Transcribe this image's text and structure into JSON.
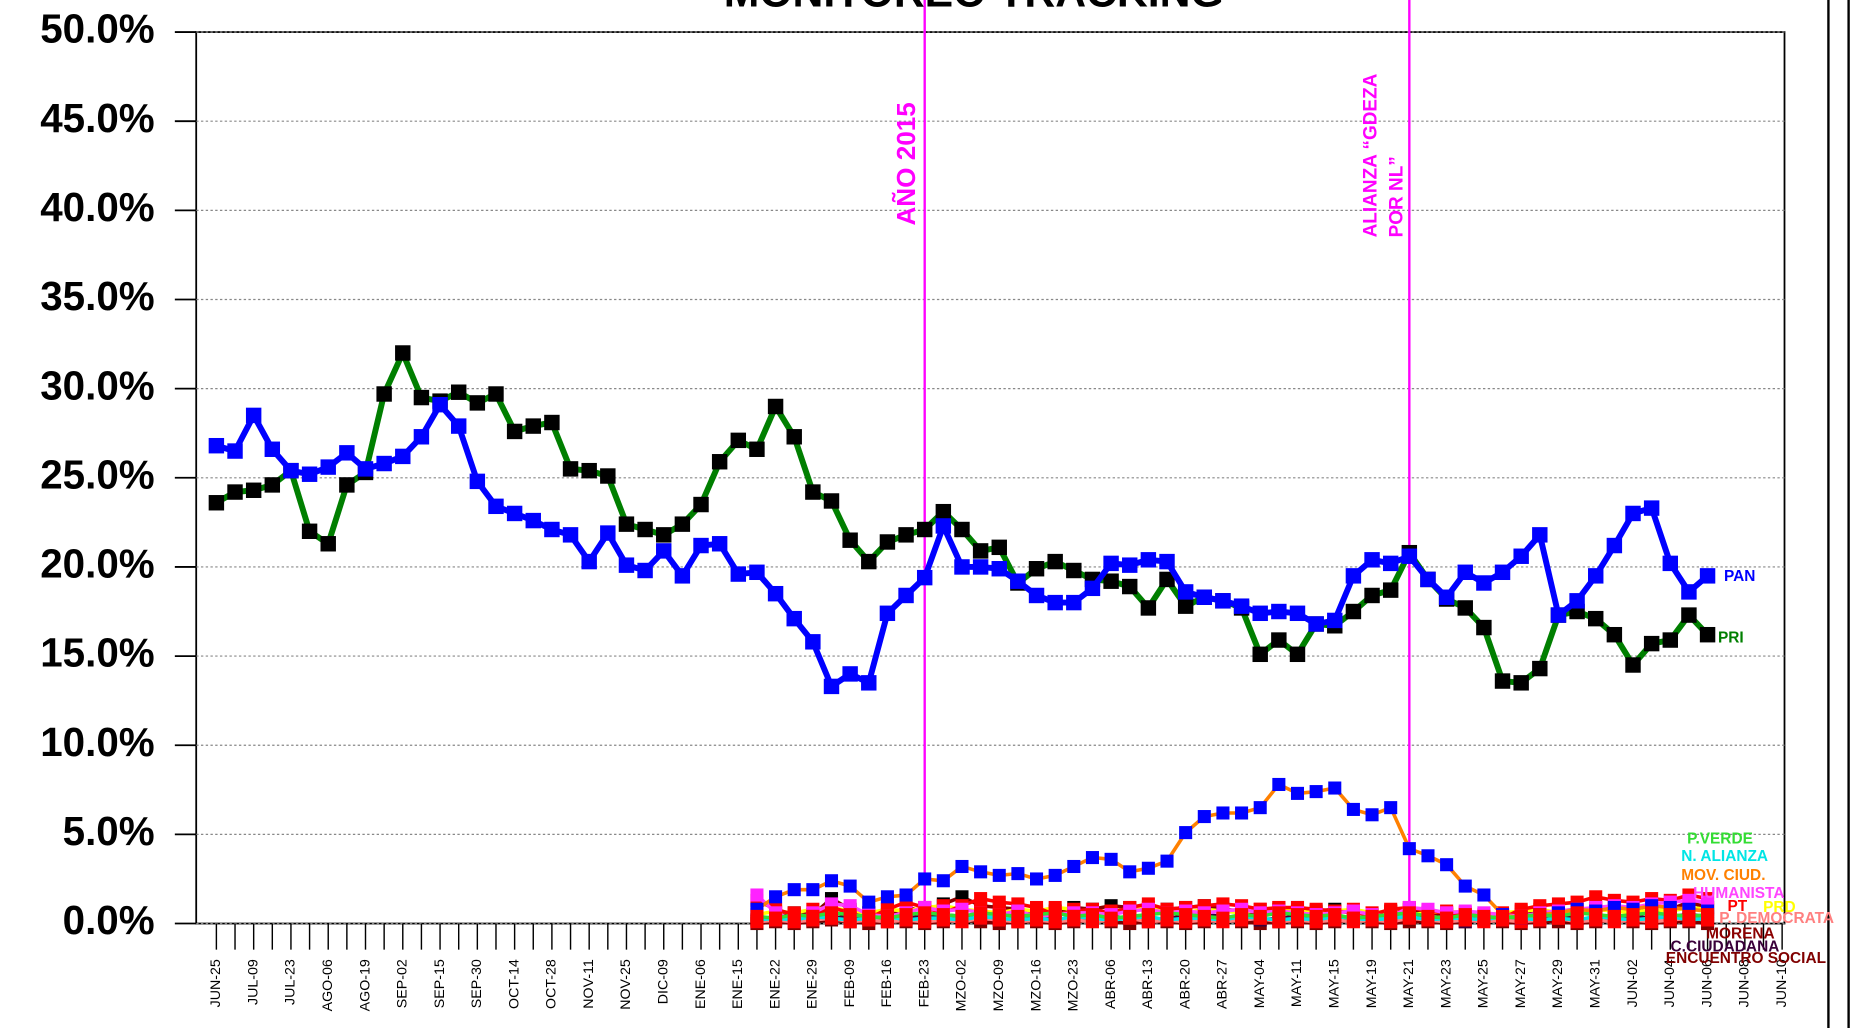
{
  "chart_data": {
    "type": "line",
    "title": "MONITOREO TRACKING",
    "categories": [
      "JUN-25",
      null,
      "JUL-09",
      null,
      "JUL-23",
      null,
      "AGO-06",
      null,
      "AGO-19",
      null,
      "SEP-02",
      null,
      "SEP-15",
      null,
      "SEP-30",
      null,
      "OCT-14",
      null,
      "OCT-28",
      null,
      "NOV-11",
      null,
      "NOV-25",
      null,
      "DIC-09",
      null,
      "ENE-06",
      null,
      "ENE-15",
      null,
      "ENE-22",
      null,
      "ENE-29",
      null,
      "FEB-09",
      null,
      "FEB-16",
      null,
      "FEB-23",
      null,
      "MZO-02",
      null,
      "MZO-09",
      null,
      "MZO-16",
      null,
      "MZO-23",
      null,
      "ABR-06",
      null,
      "ABR-13",
      null,
      "ABR-20",
      null,
      "ABR-27",
      null,
      "MAY-04",
      null,
      "MAY-11",
      null,
      "MAY-15",
      null,
      "MAY-19",
      null,
      "MAY-21",
      null,
      "MAY-23",
      null,
      "MAY-25",
      null,
      "MAY-27",
      null,
      "MAY-29",
      null,
      "MAY-31",
      null,
      "JUN-02",
      null,
      "JUN-04",
      null,
      "JUN-06",
      null,
      "JUN-08",
      null,
      "JUN-10"
    ],
    "ylim": [
      0,
      50
    ],
    "yticks": [
      {
        "value": 0,
        "label": "0.0%"
      },
      {
        "value": 5,
        "label": "5.0%"
      },
      {
        "value": 10,
        "label": "10.0%"
      },
      {
        "value": 15,
        "label": "15.0%"
      },
      {
        "value": 20,
        "label": "20.0%"
      },
      {
        "value": 25,
        "label": "25.0%"
      },
      {
        "value": 30,
        "label": "30.0%"
      },
      {
        "value": 35,
        "label": "35.0%"
      },
      {
        "value": 40,
        "label": "40.0%"
      },
      {
        "value": 45,
        "label": "45.0%"
      },
      {
        "value": 50,
        "label": "50.0%"
      }
    ],
    "grid": true,
    "annotations": [
      {
        "lines": [
          "AÑO 2015"
        ],
        "at": "FEB-23"
      },
      {
        "lines": [
          "ALIANZA “GDEZA",
          "POR NL”"
        ],
        "at": "MAY-21"
      }
    ],
    "series": [
      {
        "name": "PAN",
        "color": "#0000ff",
        "marker_color": "#0000ff",
        "values": [
          26.8,
          26.5,
          28.5,
          26.6,
          25.4,
          25.2,
          25.6,
          26.4,
          25.5,
          25.8,
          26.2,
          27.3,
          29.1,
          27.9,
          24.8,
          23.4,
          23.0,
          22.6,
          22.1,
          21.8,
          20.3,
          21.9,
          20.1,
          19.8,
          20.9,
          19.5,
          21.2,
          21.3,
          19.6,
          19.7,
          18.5,
          17.1,
          15.8,
          13.3,
          14.0,
          13.5,
          17.4,
          18.4,
          19.4,
          22.3,
          20.0,
          20.0,
          19.9,
          19.2,
          18.4,
          18.0,
          18.0,
          18.8,
          20.2,
          20.1,
          20.4,
          20.3,
          18.6,
          18.3,
          18.1,
          17.8,
          17.4,
          17.5,
          17.4,
          16.8,
          17.0,
          19.5,
          20.4,
          20.2,
          20.6,
          19.3,
          18.3,
          19.7,
          19.1,
          19.7,
          20.6,
          21.8,
          17.3,
          18.1,
          19.5,
          21.2,
          23.0,
          23.3,
          20.2,
          18.6,
          19.5,
          null,
          null,
          null,
          null
        ]
      },
      {
        "name": "PRI",
        "color": "#007f00",
        "marker_color": "#000000",
        "values": [
          23.6,
          24.2,
          24.3,
          24.6,
          25.4,
          22.0,
          21.3,
          24.6,
          25.3,
          29.7,
          32.0,
          29.5,
          29.3,
          29.8,
          29.2,
          29.7,
          27.6,
          27.9,
          28.1,
          25.5,
          25.4,
          25.1,
          22.4,
          22.1,
          21.8,
          22.4,
          23.5,
          25.9,
          27.1,
          26.6,
          29.0,
          27.3,
          24.2,
          23.7,
          21.5,
          20.3,
          21.4,
          21.8,
          22.1,
          23.1,
          22.1,
          20.9,
          21.1,
          19.1,
          19.9,
          20.3,
          19.8,
          19.3,
          19.2,
          18.9,
          17.7,
          19.3,
          17.8,
          18.3,
          18.1,
          17.7,
          15.1,
          15.9,
          15.1,
          16.8,
          16.7,
          17.5,
          18.4,
          18.7,
          20.8,
          19.3,
          18.2,
          17.7,
          16.6,
          13.6,
          13.5,
          14.3,
          17.3,
          17.5,
          17.1,
          16.2,
          14.5,
          15.7,
          15.9,
          17.3,
          16.2,
          null,
          null,
          null,
          null
        ]
      },
      {
        "name": "P.VERDE",
        "color": "#33dd33",
        "marker_color": "#ff0000",
        "values": [
          null,
          null,
          null,
          null,
          null,
          null,
          null,
          null,
          null,
          null,
          null,
          null,
          null,
          null,
          null,
          null,
          null,
          null,
          null,
          null,
          null,
          null,
          null,
          null,
          null,
          null,
          null,
          null,
          null,
          0.4,
          0.3,
          0.5,
          0.4,
          0.6,
          0.5,
          0.4,
          0.3,
          0.5,
          0.6,
          0.5,
          0.4,
          0.6,
          0.5,
          0.4,
          0.5,
          0.6,
          0.4,
          0.5,
          0.3,
          0.4,
          0.5,
          0.6,
          0.5,
          0.4,
          0.3,
          0.5,
          0.4,
          0.6,
          0.5,
          0.4,
          0.5,
          0.3,
          0.4,
          0.5,
          0.6,
          0.4,
          0.3,
          0.5,
          0.4,
          0.3,
          0.4,
          0.5,
          0.4,
          0.6,
          0.5,
          0.4,
          0.5,
          0.6,
          0.5,
          0.4,
          0.5,
          null,
          null,
          null,
          null
        ]
      },
      {
        "name": "N. ALIANZA",
        "color": "#00e5e5",
        "marker_color": "#ff0000",
        "values": [
          null,
          null,
          null,
          null,
          null,
          null,
          null,
          null,
          null,
          null,
          null,
          null,
          null,
          null,
          null,
          null,
          null,
          null,
          null,
          null,
          null,
          null,
          null,
          null,
          null,
          null,
          null,
          null,
          null,
          0.2,
          0.3,
          0.2,
          0.4,
          0.3,
          0.2,
          0.3,
          0.4,
          0.2,
          0.3,
          0.3,
          0.2,
          0.4,
          0.3,
          0.2,
          0.3,
          0.2,
          0.4,
          0.3,
          0.2,
          0.3,
          0.4,
          0.2,
          0.3,
          0.3,
          0.2,
          0.4,
          0.3,
          0.2,
          0.3,
          0.2,
          0.4,
          0.3,
          0.2,
          0.3,
          0.4,
          0.2,
          0.3,
          0.3,
          0.2,
          0.4,
          0.3,
          0.2,
          0.3,
          0.2,
          0.4,
          0.3,
          0.2,
          0.3,
          0.4,
          0.2,
          0.3,
          null,
          null,
          null,
          null
        ]
      },
      {
        "name": "MOV. CIUD.",
        "color": "#ff8000",
        "marker_color": "#0000ff",
        "values": [
          null,
          null,
          null,
          null,
          null,
          null,
          null,
          null,
          null,
          null,
          null,
          null,
          null,
          null,
          null,
          null,
          null,
          null,
          null,
          null,
          null,
          null,
          null,
          null,
          null,
          null,
          null,
          null,
          null,
          0.8,
          1.5,
          1.9,
          1.9,
          2.4,
          2.1,
          1.2,
          1.5,
          1.6,
          2.5,
          2.4,
          3.2,
          2.9,
          2.7,
          2.8,
          2.5,
          2.7,
          3.2,
          3.7,
          3.6,
          2.9,
          3.1,
          3.5,
          5.1,
          6.0,
          6.2,
          6.2,
          6.5,
          7.8,
          7.3,
          7.4,
          7.6,
          6.4,
          6.1,
          6.5,
          4.2,
          3.8,
          3.3,
          2.1,
          1.6,
          0.5,
          0.3,
          0.5,
          0.6,
          0.8,
          0.7,
          0.9,
          0.8,
          1.0,
          0.9,
          0.8,
          0.7,
          null,
          null,
          null,
          null
        ]
      },
      {
        "name": "HUMANISTA",
        "color": "#ff44ff",
        "marker_color": "#ff22ff",
        "values": [
          null,
          null,
          null,
          null,
          null,
          null,
          null,
          null,
          null,
          null,
          null,
          null,
          null,
          null,
          null,
          null,
          null,
          null,
          null,
          null,
          null,
          null,
          null,
          null,
          null,
          null,
          null,
          null,
          null,
          1.6,
          0.6,
          0.2,
          0.6,
          1.1,
          1.0,
          0.5,
          0.4,
          0.6,
          0.9,
          0.7,
          0.8,
          0.6,
          0.5,
          0.7,
          0.4,
          0.5,
          0.6,
          0.6,
          0.5,
          0.7,
          0.8,
          0.6,
          0.7,
          0.6,
          0.7,
          0.8,
          0.6,
          0.7,
          0.6,
          0.5,
          0.6,
          0.7,
          0.5,
          0.4,
          0.9,
          0.8,
          0.6,
          0.7,
          0.6,
          0.5,
          0.4,
          0.6,
          0.7,
          0.8,
          0.9,
          1.0,
          0.9,
          1.1,
          1.2,
          1.3,
          1.2,
          null,
          null,
          null,
          null
        ]
      },
      {
        "name": "PT",
        "color": "#ff0000",
        "marker_color": "#ff0000",
        "values": [
          null,
          null,
          null,
          null,
          null,
          null,
          null,
          null,
          null,
          null,
          null,
          null,
          null,
          null,
          null,
          null,
          null,
          null,
          null,
          null,
          null,
          null,
          null,
          null,
          null,
          null,
          null,
          null,
          null,
          1.3,
          0.8,
          0.5,
          0.4,
          0.9,
          0.6,
          0.3,
          0.8,
          1.2,
          0.9,
          0.6,
          1.0,
          1.4,
          1.2,
          1.1,
          0.9,
          0.5,
          0.7,
          0.8,
          0.6,
          0.9,
          1.1,
          0.8,
          0.9,
          1.0,
          1.1,
          1.0,
          0.8,
          0.9,
          0.9,
          0.8,
          0.7,
          0.6,
          0.5,
          0.8,
          0.9,
          0.7,
          0.6,
          0.5,
          0.4,
          0.3,
          0.8,
          1.0,
          1.1,
          1.2,
          1.5,
          1.3,
          1.2,
          1.4,
          1.3,
          1.6,
          1.4,
          null,
          null,
          null,
          null
        ]
      },
      {
        "name": "PRD",
        "color": "#ffff00",
        "marker_color": "#ff0000",
        "values": [
          null,
          null,
          null,
          null,
          null,
          null,
          null,
          null,
          null,
          null,
          null,
          null,
          null,
          null,
          null,
          null,
          null,
          null,
          null,
          null,
          null,
          null,
          null,
          null,
          null,
          null,
          null,
          null,
          null,
          0.5,
          0.7,
          0.6,
          0.8,
          0.9,
          0.7,
          0.6,
          0.8,
          0.7,
          0.9,
          1.0,
          0.8,
          0.7,
          0.6,
          0.8,
          0.7,
          0.9,
          0.8,
          0.6,
          0.7,
          0.8,
          0.9,
          0.7,
          0.6,
          0.8,
          0.7,
          0.6,
          0.8,
          0.9,
          0.7,
          0.6,
          0.7,
          0.8,
          0.6,
          0.7,
          0.5,
          0.6,
          0.7,
          0.6,
          0.5,
          0.6,
          0.7,
          0.8,
          0.6,
          0.7,
          0.8,
          0.7,
          0.6,
          0.8,
          0.7,
          0.9,
          0.8,
          null,
          null,
          null,
          null
        ]
      },
      {
        "name": "P. DEMOCRATA",
        "color": "#ff8080",
        "marker_color": "#ff0000",
        "values": [
          null,
          null,
          null,
          null,
          null,
          null,
          null,
          null,
          null,
          null,
          null,
          null,
          null,
          null,
          null,
          null,
          null,
          null,
          null,
          null,
          null,
          null,
          null,
          null,
          null,
          null,
          null,
          null,
          null,
          0.1,
          0.2,
          0.1,
          0.2,
          0.3,
          0.1,
          0.2,
          0.1,
          0.2,
          0.1,
          0.2,
          0.1,
          0.3,
          0.2,
          0.1,
          0.2,
          0.1,
          0.2,
          0.1,
          0.2,
          0.3,
          0.1,
          0.2,
          0.1,
          0.2,
          0.1,
          0.2,
          0.3,
          0.1,
          0.2,
          0.1,
          0.2,
          0.1,
          0.2,
          0.1,
          0.3,
          0.2,
          0.1,
          0.2,
          0.1,
          0.2,
          0.1,
          0.2,
          0.3,
          0.1,
          0.2,
          0.1,
          0.2,
          0.1,
          0.2,
          0.3,
          0.2,
          null,
          null,
          null,
          null
        ]
      },
      {
        "name": "MORENA",
        "color": "#8b0000",
        "marker_color": "#000000",
        "values": [
          null,
          null,
          null,
          null,
          null,
          null,
          null,
          null,
          null,
          null,
          null,
          null,
          null,
          null,
          null,
          null,
          null,
          null,
          null,
          null,
          null,
          null,
          null,
          null,
          null,
          null,
          null,
          null,
          null,
          0.2,
          0.4,
          0.6,
          0.5,
          1.4,
          0.8,
          0.6,
          0.5,
          0.9,
          0.7,
          1.1,
          1.5,
          1.0,
          0.9,
          0.8,
          0.6,
          0.7,
          0.9,
          0.8,
          1.0,
          0.9,
          0.7,
          0.8,
          0.9,
          1.0,
          0.8,
          0.7,
          0.6,
          0.8,
          0.9,
          0.7,
          0.8,
          0.6,
          0.5,
          0.7,
          0.8,
          0.6,
          0.5,
          0.4,
          0.3,
          0.4,
          0.5,
          0.6,
          0.7,
          0.8,
          0.7,
          0.9,
          0.8,
          0.7,
          0.8,
          1.2,
          0.9,
          null,
          null,
          null,
          null
        ]
      },
      {
        "name": "C.CIUDADANA",
        "color": "#3a003a",
        "marker_color": "#3a003a",
        "values": [
          null,
          null,
          null,
          null,
          null,
          null,
          null,
          null,
          null,
          null,
          null,
          null,
          null,
          null,
          null,
          null,
          null,
          null,
          null,
          null,
          null,
          null,
          null,
          null,
          null,
          null,
          null,
          null,
          null,
          0.1,
          0.2,
          0.3,
          0.2,
          0.3,
          0.4,
          0.3,
          0.2,
          0.3,
          0.4,
          0.5,
          0.4,
          0.3,
          0.2,
          0.3,
          0.4,
          0.3,
          0.2,
          0.3,
          0.4,
          0.3,
          0.2,
          0.3,
          0.4,
          0.5,
          0.4,
          0.3,
          0.2,
          0.3,
          0.4,
          0.3,
          0.2,
          0.3,
          0.2,
          0.3,
          0.4,
          0.3,
          0.2,
          0.1,
          0.2,
          0.3,
          0.2,
          0.3,
          0.4,
          0.3,
          0.2,
          0.3,
          0.4,
          0.3,
          0.4,
          0.5,
          0.4,
          null,
          null,
          null,
          null
        ]
      },
      {
        "name": "ENCUENTRO SOCIAL",
        "color": "#800000",
        "marker_color": "#800000",
        "values": [
          null,
          null,
          null,
          null,
          null,
          null,
          null,
          null,
          null,
          null,
          null,
          null,
          null,
          null,
          null,
          null,
          null,
          null,
          null,
          null,
          null,
          null,
          null,
          null,
          null,
          null,
          null,
          null,
          null,
          0.0,
          0.1,
          0.0,
          0.1,
          0.2,
          0.1,
          0.0,
          0.1,
          0.1,
          0.0,
          0.1,
          0.2,
          0.1,
          0.0,
          0.1,
          0.1,
          0.0,
          0.1,
          0.2,
          0.1,
          0.0,
          0.1,
          0.1,
          0.0,
          0.1,
          0.2,
          0.1,
          0.0,
          0.1,
          0.1,
          0.0,
          0.1,
          0.2,
          0.1,
          0.0,
          0.1,
          0.1,
          0.0,
          0.1,
          0.2,
          0.1,
          0.0,
          0.1,
          0.1,
          0.0,
          0.1,
          0.2,
          0.1,
          0.0,
          0.1,
          0.1,
          0.0,
          null,
          null,
          null,
          null
        ]
      }
    ]
  }
}
